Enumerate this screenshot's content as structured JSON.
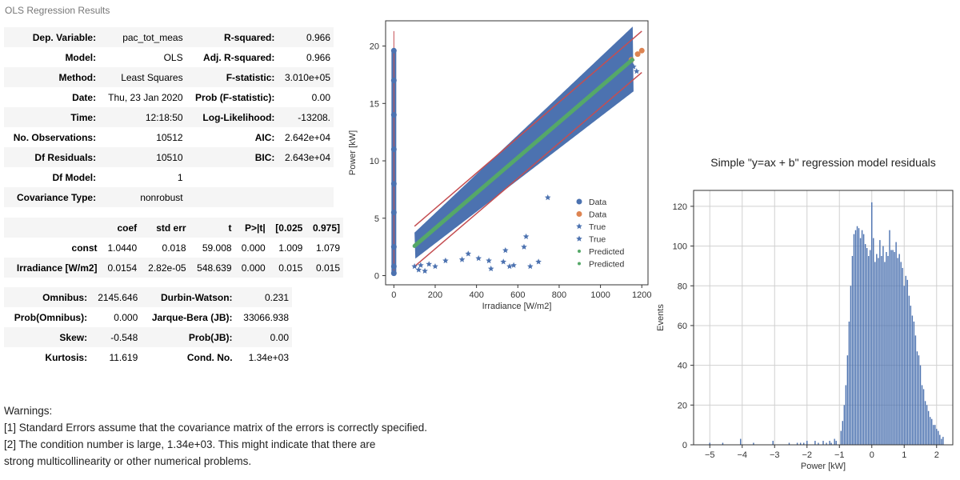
{
  "caption": "OLS Regression Results",
  "summary_rows": [
    {
      "l1": "Dep. Variable:",
      "v1": "pac_tot_meas",
      "l2": "R-squared:",
      "v2": "0.966"
    },
    {
      "l1": "Model:",
      "v1": "OLS",
      "l2": "Adj. R-squared:",
      "v2": "0.966"
    },
    {
      "l1": "Method:",
      "v1": "Least Squares",
      "l2": "F-statistic:",
      "v2": "3.010e+05"
    },
    {
      "l1": "Date:",
      "v1": "Thu, 23 Jan 2020",
      "l2": "Prob (F-statistic):",
      "v2": "0.00"
    },
    {
      "l1": "Time:",
      "v1": "12:18:50",
      "l2": "Log-Likelihood:",
      "v2": "-13208."
    },
    {
      "l1": "No. Observations:",
      "v1": "10512",
      "l2": "AIC:",
      "v2": "2.642e+04"
    },
    {
      "l1": "Df Residuals:",
      "v1": "10510",
      "l2": "BIC:",
      "v2": "2.643e+04"
    },
    {
      "l1": "Df Model:",
      "v1": "1",
      "l2": "",
      "v2": ""
    },
    {
      "l1": "Covariance Type:",
      "v1": "nonrobust",
      "l2": "",
      "v2": ""
    }
  ],
  "coef_header": [
    "",
    "coef",
    "std err",
    "t",
    "P>|t|",
    "[0.025",
    "0.975]"
  ],
  "coef_rows": [
    [
      "const",
      "1.0440",
      "0.018",
      "59.008",
      "0.000",
      "1.009",
      "1.079"
    ],
    [
      "Irradiance [W/m2]",
      "0.0154",
      "2.82e-05",
      "548.639",
      "0.000",
      "0.015",
      "0.015"
    ]
  ],
  "diag_rows": [
    {
      "l1": "Omnibus:",
      "v1": "2145.646",
      "l2": "Durbin-Watson:",
      "v2": "0.231"
    },
    {
      "l1": "Prob(Omnibus):",
      "v1": "0.000",
      "l2": "Jarque-Bera (JB):",
      "v2": "33066.938"
    },
    {
      "l1": "Skew:",
      "v1": "-0.548",
      "l2": "Prob(JB):",
      "v2": "0.00"
    },
    {
      "l1": "Kurtosis:",
      "v1": "11.619",
      "l2": "Cond. No.",
      "v2": "1.34e+03"
    }
  ],
  "warnings": [
    "Warnings:",
    "[1] Standard Errors assume that the covariance matrix of the errors is correctly specified.",
    "[2] The condition number is large, 1.34e+03. This might indicate that there are",
    "strong multicollinearity or other numerical problems."
  ],
  "chart_data": [
    {
      "type": "scatter",
      "title": "",
      "xlabel": "Irradiance [W/m2]",
      "ylabel": "Power [kW]",
      "xlim": [
        -40,
        1230
      ],
      "ylim": [
        -0.8,
        22.2
      ],
      "xticks": [
        0,
        200,
        400,
        600,
        800,
        1000,
        1200
      ],
      "yticks": [
        0,
        5,
        10,
        15,
        20
      ],
      "grid": false,
      "legend_position": "lower right",
      "legend": [
        {
          "label": "Data",
          "marker": "circle",
          "color": "#4c72b0"
        },
        {
          "label": "Data",
          "marker": "circle",
          "color": "#dd8452"
        },
        {
          "label": "True",
          "marker": "star",
          "color": "#4c72b0"
        },
        {
          "label": "True",
          "marker": "star",
          "color": "#4c72b0"
        },
        {
          "label": "Predicted",
          "marker": "dot",
          "color": "#55a868"
        },
        {
          "label": "Predicted",
          "marker": "dot",
          "color": "#55a868"
        }
      ],
      "fit": {
        "intercept": 1.044,
        "slope": 0.0154,
        "x_range": [
          100,
          1160
        ]
      },
      "band_lines": [
        {
          "x": [
            100,
            1200
          ],
          "y": [
            4.3,
            21.3
          ],
          "color": "#c44e52"
        },
        {
          "x": [
            100,
            1200
          ],
          "y": [
            0.8,
            17.7
          ],
          "color": "#c44e52"
        }
      ],
      "series": [
        {
          "name": "Data",
          "color": "#4c72b0",
          "points": [
            [
              0,
              0.2
            ],
            [
              0,
              0.8
            ],
            [
              0,
              2.5
            ],
            [
              0,
              5.5
            ],
            [
              0,
              8
            ],
            [
              0,
              11
            ],
            [
              0,
              14
            ],
            [
              0,
              17
            ],
            [
              0,
              19.6
            ]
          ]
        },
        {
          "name": "Data",
          "color": "#dd8452",
          "points": [
            [
              1150,
              18.8
            ],
            [
              1180,
              19.3
            ],
            [
              1200,
              19.6
            ]
          ]
        },
        {
          "name": "True",
          "color": "#4c72b0",
          "points": [
            [
              1130,
              18.6
            ],
            [
              1160,
              18.2
            ],
            [
              1175,
              17.8
            ],
            [
              745,
              6.8
            ],
            [
              640,
              3.4
            ],
            [
              630,
              2.5
            ],
            [
              540,
              2.2
            ],
            [
              530,
              1.2
            ],
            [
              460,
              1.3
            ],
            [
              470,
              0.6
            ],
            [
              410,
              1.5
            ],
            [
              360,
              1.9
            ],
            [
              330,
              1.4
            ],
            [
              200,
              0.8
            ],
            [
              150,
              0.4
            ],
            [
              120,
              0.5
            ],
            [
              100,
              0.8
            ],
            [
              130,
              0.9
            ],
            [
              170,
              1.0
            ],
            [
              250,
              1.3
            ],
            [
              660,
              0.8
            ],
            [
              560,
              0.8
            ],
            [
              580,
              0.9
            ],
            [
              700,
              1.2
            ],
            [
              820,
              12.5
            ],
            [
              950,
              16.0
            ]
          ]
        },
        {
          "name": "Predicted",
          "color": "#55a868",
          "points": [
            [
              100,
              2.58
            ],
            [
              200,
              4.12
            ],
            [
              300,
              5.66
            ],
            [
              400,
              7.2
            ],
            [
              500,
              8.74
            ],
            [
              600,
              10.28
            ],
            [
              700,
              11.82
            ],
            [
              800,
              13.36
            ],
            [
              900,
              14.9
            ],
            [
              1000,
              16.44
            ],
            [
              1100,
              17.98
            ],
            [
              1150,
              18.75
            ]
          ]
        }
      ]
    },
    {
      "type": "bar",
      "title": "Simple \"y=ax + b\" regression model residuals",
      "xlabel": "Power [kW]",
      "ylabel": "Events",
      "xlim": [
        -5.5,
        2.5
      ],
      "ylim": [
        0,
        128
      ],
      "xticks": [
        -5,
        -4,
        -3,
        -2,
        -1,
        0,
        1,
        2
      ],
      "yticks": [
        0,
        20,
        40,
        60,
        80,
        100,
        120
      ],
      "grid": true,
      "bin_width": 0.05,
      "bins": [
        [
          -5.0,
          1
        ],
        [
          -4.6,
          1
        ],
        [
          -4.05,
          3
        ],
        [
          -3.65,
          1
        ],
        [
          -3.05,
          2
        ],
        [
          -2.55,
          1
        ],
        [
          -2.3,
          1
        ],
        [
          -2.2,
          1
        ],
        [
          -2.1,
          1
        ],
        [
          -2.0,
          2
        ],
        [
          -1.75,
          2
        ],
        [
          -1.65,
          1
        ],
        [
          -1.5,
          2
        ],
        [
          -1.4,
          1
        ],
        [
          -1.3,
          2
        ],
        [
          -1.25,
          1
        ],
        [
          -1.15,
          3
        ],
        [
          -1.1,
          2
        ],
        [
          -0.95,
          7
        ],
        [
          -0.9,
          12
        ],
        [
          -0.85,
          20
        ],
        [
          -0.8,
          30
        ],
        [
          -0.75,
          45
        ],
        [
          -0.7,
          62
        ],
        [
          -0.65,
          80
        ],
        [
          -0.6,
          95
        ],
        [
          -0.55,
          106
        ],
        [
          -0.5,
          108
        ],
        [
          -0.45,
          110
        ],
        [
          -0.4,
          109
        ],
        [
          -0.35,
          104
        ],
        [
          -0.3,
          108
        ],
        [
          -0.25,
          106
        ],
        [
          -0.2,
          101
        ],
        [
          -0.15,
          99
        ],
        [
          -0.1,
          95
        ],
        [
          -0.05,
          98
        ],
        [
          0.0,
          122
        ],
        [
          0.05,
          104
        ],
        [
          0.1,
          92
        ],
        [
          0.15,
          96
        ],
        [
          0.2,
          94
        ],
        [
          0.25,
          103
        ],
        [
          0.3,
          95
        ],
        [
          0.35,
          100
        ],
        [
          0.4,
          92
        ],
        [
          0.45,
          97
        ],
        [
          0.5,
          95
        ],
        [
          0.55,
          108
        ],
        [
          0.6,
          98
        ],
        [
          0.65,
          98
        ],
        [
          0.7,
          97
        ],
        [
          0.75,
          102
        ],
        [
          0.8,
          94
        ],
        [
          0.85,
          96
        ],
        [
          0.9,
          92
        ],
        [
          0.95,
          89
        ],
        [
          1.0,
          80
        ],
        [
          1.05,
          85
        ],
        [
          1.1,
          83
        ],
        [
          1.15,
          75
        ],
        [
          1.2,
          70
        ],
        [
          1.25,
          65
        ],
        [
          1.3,
          62
        ],
        [
          1.35,
          55
        ],
        [
          1.4,
          47
        ],
        [
          1.45,
          45
        ],
        [
          1.5,
          40
        ],
        [
          1.55,
          30
        ],
        [
          1.6,
          28
        ],
        [
          1.65,
          22
        ],
        [
          1.7,
          20
        ],
        [
          1.75,
          17
        ],
        [
          1.8,
          14
        ],
        [
          1.85,
          13
        ],
        [
          1.9,
          10
        ],
        [
          1.95,
          10
        ],
        [
          2.0,
          8
        ],
        [
          2.05,
          7
        ],
        [
          2.1,
          5
        ],
        [
          2.15,
          3
        ],
        [
          2.2,
          4
        ]
      ]
    }
  ]
}
